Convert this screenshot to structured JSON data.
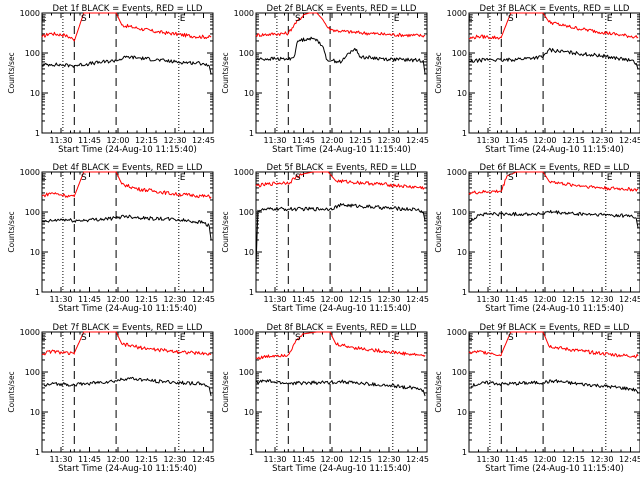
{
  "chart_data": [
    {
      "type": "line",
      "title": "Det 1f  BLACK = Events, RED = LLD",
      "ylabel": "Counts/sec",
      "xlabel": "Start Time (24-Aug-10 11:15:40)",
      "x_ticks": [
        "11:30",
        "11:45",
        "12:00",
        "12:15",
        "12:30",
        "12:45"
      ],
      "y_ticks": [
        "1",
        "10",
        "100",
        "1000"
      ],
      "ylim": [
        1,
        1000
      ],
      "ylog": true,
      "markers": [
        "E",
        "S",
        "E"
      ],
      "series": [
        {
          "name": "LLD",
          "color": "#ff0000",
          "x": [
            "11:20",
            "11:24",
            "11:32",
            "11:36",
            "11:37",
            "11:42",
            "11:47",
            "11:57",
            "11:59",
            "12:02",
            "12:10",
            "12:20",
            "12:30",
            "12:40",
            "12:49"
          ],
          "y": [
            250,
            310,
            280,
            230,
            200,
            1000,
            1000,
            1000,
            1000,
            500,
            420,
            340,
            300,
            260,
            250
          ]
        },
        {
          "name": "Events",
          "color": "#000000",
          "x": [
            "11:20",
            "11:20",
            "11:25",
            "11:31",
            "11:36",
            "11:59",
            "12:05",
            "12:15",
            "12:30",
            "12:45",
            "12:48",
            "12:49"
          ],
          "y": [
            10,
            50,
            52,
            50,
            48,
            65,
            80,
            72,
            60,
            55,
            48,
            30
          ]
        }
      ]
    },
    {
      "type": "line",
      "title": "Det 2f  BLACK = Events, RED = LLD",
      "ylabel": "Counts/sec",
      "xlabel": "Start Time (24-Aug-10 11:15:40)",
      "x_ticks": [
        "11:30",
        "11:45",
        "12:00",
        "12:15",
        "12:30",
        "12:45"
      ],
      "y_ticks": [
        "1",
        "10",
        "100",
        "1000"
      ],
      "ylim": [
        1,
        1000
      ],
      "ylog": true,
      "markers": [
        "S",
        "E"
      ],
      "series": [
        {
          "name": "LLD",
          "color": "#ff0000",
          "x": [
            "11:20",
            "11:30",
            "11:37",
            "11:40",
            "11:45",
            "11:48",
            "11:52",
            "11:55",
            "11:58",
            "12:00",
            "12:05",
            "12:15",
            "12:30",
            "12:49"
          ],
          "y": [
            280,
            300,
            310,
            500,
            900,
            1000,
            1000,
            700,
            420,
            380,
            350,
            320,
            290,
            270
          ]
        },
        {
          "name": "Events",
          "color": "#000000",
          "x": [
            "11:20",
            "11:20",
            "11:30",
            "11:37",
            "11:40",
            "11:42",
            "11:47",
            "11:52",
            "11:55",
            "11:57",
            "12:00",
            "12:05",
            "12:09",
            "12:12",
            "12:15",
            "12:30",
            "12:48",
            "12:49"
          ],
          "y": [
            15,
            70,
            72,
            70,
            80,
            200,
            230,
            220,
            150,
            70,
            65,
            60,
            100,
            130,
            80,
            70,
            65,
            30
          ]
        }
      ]
    },
    {
      "type": "line",
      "title": "Det 3f  BLACK = Events, RED = LLD",
      "ylabel": "Counts/sec",
      "xlabel": "Start Time (24-Aug-10 11:15:40)",
      "x_ticks": [
        "11:30",
        "11:45",
        "12:00",
        "12:15",
        "12:30",
        "12:45"
      ],
      "y_ticks": [
        "1",
        "10",
        "100",
        "1000"
      ],
      "ylim": [
        1,
        1000
      ],
      "ylog": true,
      "markers": [
        "E",
        "S",
        "E"
      ],
      "series": [
        {
          "name": "LLD",
          "color": "#ff0000",
          "x": [
            "11:20",
            "11:25",
            "11:30",
            "11:37",
            "11:37",
            "11:42",
            "11:47",
            "11:57",
            "11:59",
            "12:02",
            "12:10",
            "12:20",
            "12:30",
            "12:40",
            "12:49"
          ],
          "y": [
            230,
            260,
            250,
            240,
            250,
            1000,
            1000,
            1000,
            1000,
            600,
            480,
            390,
            330,
            280,
            250
          ]
        },
        {
          "name": "Events",
          "color": "#000000",
          "x": [
            "11:20",
            "11:20",
            "11:25",
            "11:31",
            "11:37",
            "11:59",
            "12:02",
            "12:15",
            "12:30",
            "12:45",
            "12:48",
            "12:49"
          ],
          "y": [
            12,
            60,
            65,
            70,
            65,
            80,
            120,
            100,
            85,
            65,
            55,
            40
          ]
        }
      ]
    },
    {
      "type": "line",
      "title": "Det 4f  BLACK = Events, RED = LLD",
      "ylabel": "Counts/sec",
      "xlabel": "Start Time (24-Aug-10 11:15:40)",
      "x_ticks": [
        "11:30",
        "11:45",
        "12:00",
        "12:15",
        "12:30",
        "12:45"
      ],
      "y_ticks": [
        "1",
        "10",
        "100",
        "1000"
      ],
      "ylim": [
        1,
        1000
      ],
      "ylog": true,
      "markers": [
        "E",
        "S",
        "E"
      ],
      "series": [
        {
          "name": "LLD",
          "color": "#ff0000",
          "x": [
            "11:20",
            "11:25",
            "11:32",
            "11:37",
            "11:37",
            "11:42",
            "11:47",
            "11:57",
            "11:59",
            "12:02",
            "12:10",
            "12:20",
            "12:30",
            "12:40",
            "12:49"
          ],
          "y": [
            250,
            300,
            260,
            240,
            250,
            1000,
            1000,
            1000,
            1000,
            500,
            380,
            330,
            280,
            260,
            240
          ]
        },
        {
          "name": "Events",
          "color": "#000000",
          "x": [
            "11:20",
            "11:20",
            "11:25",
            "11:31",
            "11:37",
            "11:59",
            "12:03",
            "12:15",
            "12:30",
            "12:45",
            "12:48",
            "12:49"
          ],
          "y": [
            15,
            55,
            60,
            65,
            60,
            70,
            80,
            70,
            65,
            55,
            45,
            20
          ]
        }
      ]
    },
    {
      "type": "line",
      "title": "Det 5f  BLACK = Events, RED = LLD",
      "ylabel": "Counts/sec",
      "xlabel": "Start Time (24-Aug-10 11:15:40)",
      "x_ticks": [
        "11:30",
        "11:45",
        "12:00",
        "12:15",
        "12:30",
        "12:45"
      ],
      "y_ticks": [
        "1",
        "10",
        "100",
        "1000"
      ],
      "ylim": [
        1,
        1000
      ],
      "ylog": true,
      "markers": [
        "S",
        "E"
      ],
      "series": [
        {
          "name": "LLD",
          "color": "#ff0000",
          "x": [
            "11:20",
            "11:30",
            "11:38",
            "11:40",
            "11:45",
            "11:50",
            "11:58",
            "12:02",
            "12:10",
            "12:20",
            "12:30",
            "12:40",
            "12:49"
          ],
          "y": [
            450,
            520,
            550,
            700,
            900,
            1000,
            1000,
            600,
            560,
            520,
            480,
            430,
            400
          ]
        },
        {
          "name": "Events",
          "color": "#000000",
          "x": [
            "11:20",
            "11:21",
            "11:25",
            "11:30",
            "11:37",
            "11:59",
            "12:05",
            "12:15",
            "12:30",
            "12:45",
            "12:48",
            "12:49"
          ],
          "y": [
            4,
            110,
            115,
            120,
            118,
            120,
            150,
            140,
            125,
            115,
            100,
            60
          ]
        }
      ]
    },
    {
      "type": "line",
      "title": "Det 6f  BLACK = Events, RED = LLD",
      "ylabel": "Counts/sec",
      "xlabel": "Start Time (24-Aug-10 11:15:40)",
      "x_ticks": [
        "11:30",
        "11:45",
        "12:00",
        "12:15",
        "12:30",
        "12:45"
      ],
      "y_ticks": [
        "1",
        "10",
        "100",
        "1000"
      ],
      "ylim": [
        1,
        1000
      ],
      "ylog": true,
      "markers": [
        "S",
        "E"
      ],
      "series": [
        {
          "name": "LLD",
          "color": "#ff0000",
          "x": [
            "11:20",
            "11:30",
            "11:37",
            "11:40",
            "11:45",
            "11:52",
            "11:59",
            "12:02",
            "12:10",
            "12:20",
            "12:30",
            "12:40",
            "12:49"
          ],
          "y": [
            300,
            320,
            330,
            800,
            1000,
            1000,
            1000,
            600,
            500,
            450,
            400,
            380,
            360
          ]
        },
        {
          "name": "Events",
          "color": "#000000",
          "x": [
            "11:20",
            "11:20",
            "11:25",
            "11:31",
            "11:37",
            "11:59",
            "12:02",
            "12:15",
            "12:30",
            "12:45",
            "12:48",
            "12:49"
          ],
          "y": [
            4,
            55,
            85,
            90,
            88,
            90,
            100,
            90,
            85,
            80,
            70,
            40
          ]
        }
      ]
    },
    {
      "type": "line",
      "title": "Det 7f  BLACK = Events, RED = LLD",
      "ylabel": "Counts/sec",
      "xlabel": "Start Time (24-Aug-10 11:15:40)",
      "x_ticks": [
        "11:30",
        "11:45",
        "12:00",
        "12:15",
        "12:30",
        "12:45"
      ],
      "y_ticks": [
        "1",
        "10",
        "100",
        "1000"
      ],
      "ylim": [
        1,
        1000
      ],
      "ylog": true,
      "markers": [
        "E",
        "S",
        "E"
      ],
      "series": [
        {
          "name": "LLD",
          "color": "#ff0000",
          "x": [
            "11:20",
            "11:25",
            "11:32",
            "11:37",
            "11:37",
            "11:42",
            "11:47",
            "11:57",
            "11:59",
            "12:02",
            "12:10",
            "12:20",
            "12:30",
            "12:40",
            "12:49"
          ],
          "y": [
            280,
            330,
            300,
            280,
            300,
            1000,
            1000,
            1000,
            1000,
            500,
            420,
            360,
            330,
            300,
            280
          ]
        },
        {
          "name": "Events",
          "color": "#000000",
          "x": [
            "11:21",
            "11:25",
            "11:31",
            "11:37",
            "11:59",
            "12:05",
            "12:15",
            "12:30",
            "12:45",
            "12:48",
            "12:49"
          ],
          "y": [
            45,
            50,
            50,
            48,
            60,
            70,
            62,
            55,
            50,
            42,
            25
          ]
        }
      ]
    },
    {
      "type": "line",
      "title": "Det 8f  BLACK = Events, RED = LLD",
      "ylabel": "Counts/sec",
      "xlabel": "Start Time (24-Aug-10 11:15:40)",
      "x_ticks": [
        "11:30",
        "11:45",
        "12:00",
        "12:15",
        "12:30",
        "12:45"
      ],
      "y_ticks": [
        "1",
        "10",
        "100",
        "1000"
      ],
      "ylim": [
        1,
        1000
      ],
      "ylog": true,
      "markers": [
        "S",
        "E"
      ],
      "series": [
        {
          "name": "LLD",
          "color": "#ff0000",
          "x": [
            "11:20",
            "11:30",
            "11:37",
            "11:40",
            "11:45",
            "11:52",
            "11:59",
            "12:02",
            "12:10",
            "12:20",
            "12:30",
            "12:40",
            "12:49"
          ],
          "y": [
            220,
            260,
            270,
            500,
            900,
            1000,
            1000,
            500,
            420,
            360,
            320,
            280,
            260
          ]
        },
        {
          "name": "Events",
          "color": "#000000",
          "x": [
            "11:20",
            "11:25",
            "11:31",
            "11:37",
            "11:59",
            "12:05",
            "12:15",
            "12:30",
            "12:45",
            "12:48",
            "12:49"
          ],
          "y": [
            55,
            60,
            55,
            52,
            55,
            58,
            52,
            45,
            40,
            35,
            25
          ]
        }
      ]
    },
    {
      "type": "line",
      "title": "Det 9f  BLACK = Events, RED = LLD",
      "ylabel": "Counts/sec",
      "xlabel": "Start Time (24-Aug-10 11:15:40)",
      "x_ticks": [
        "11:30",
        "11:45",
        "12:00",
        "12:15",
        "12:30",
        "12:45"
      ],
      "y_ticks": [
        "1",
        "10",
        "100",
        "1000"
      ],
      "ylim": [
        1,
        1000
      ],
      "ylog": true,
      "markers": [
        "E",
        "S",
        "E"
      ],
      "series": [
        {
          "name": "LLD",
          "color": "#ff0000",
          "x": [
            "11:20",
            "11:25",
            "11:32",
            "11:37",
            "11:37",
            "11:42",
            "11:47",
            "11:57",
            "11:59",
            "12:02",
            "12:10",
            "12:20",
            "12:30",
            "12:40",
            "12:49"
          ],
          "y": [
            300,
            320,
            300,
            260,
            280,
            1000,
            1000,
            1000,
            1000,
            450,
            380,
            330,
            290,
            260,
            250
          ]
        },
        {
          "name": "Events",
          "color": "#000000",
          "x": [
            "11:21",
            "11:25",
            "11:31",
            "11:37",
            "11:59",
            "12:05",
            "12:15",
            "12:30",
            "12:45",
            "12:48",
            "12:49"
          ],
          "y": [
            45,
            50,
            55,
            50,
            55,
            60,
            52,
            45,
            38,
            35,
            30
          ]
        }
      ]
    }
  ]
}
